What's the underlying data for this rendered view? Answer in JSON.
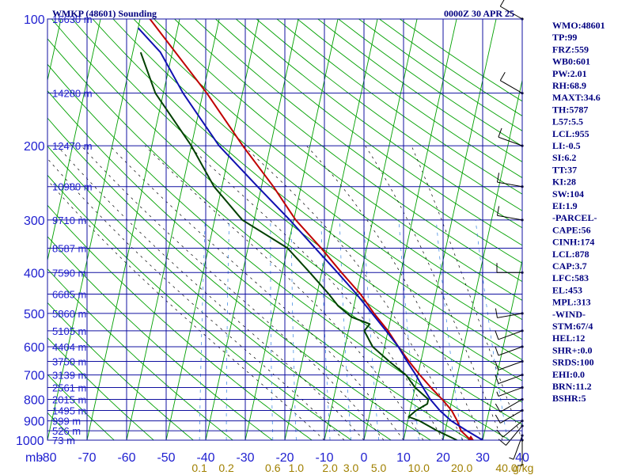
{
  "header": {
    "title": "WMKP (48601) Sounding",
    "time": "0000Z 30 APR 25"
  },
  "colors": {
    "grid": "#1010a0",
    "dry_adiabat": "#00a000",
    "moist_adiabat": "#000000",
    "mixing_ratio": "#3080e0",
    "temperature": "#c00000",
    "dewpoint": "#004000",
    "parcel": "#1010b0",
    "axis_text": "#1f1fd0",
    "mix_text": "#a08000",
    "wind": "#000000"
  },
  "axes": {
    "x_unit_label": "mb",
    "mix_unit_label": "g/kg",
    "temp_ticks": [
      -80,
      -70,
      -60,
      -50,
      -40,
      -30,
      -20,
      -10,
      0,
      10,
      20,
      30,
      40
    ],
    "temp_tick_labels": [
      "-80",
      "-70",
      "-60",
      "-50",
      "-40",
      "-30",
      "-20",
      "-10",
      "0",
      "10",
      "20",
      "30",
      "40"
    ],
    "pressure_levels": [
      100,
      200,
      300,
      400,
      500,
      600,
      700,
      800,
      900,
      1000
    ],
    "pressure_labels": [
      "100",
      "200",
      "300",
      "400",
      "500",
      "600",
      "700",
      "800",
      "900",
      "1000"
    ],
    "temp_range": [
      -80,
      40
    ],
    "pressure_range": [
      100,
      1000
    ],
    "skew": "temperature lines slope up-right",
    "grid": true,
    "mixing_ratio_labels": [
      "0.1",
      "0.2",
      "0.6",
      "1.0",
      "2.0",
      "3.0",
      "5.0",
      "10.0",
      "20.0",
      "40.0"
    ],
    "mixing_ratio_values": [
      0.1,
      0.2,
      0.6,
      1.0,
      2.0,
      3.0,
      5.0,
      10.0,
      20.0,
      40.0
    ]
  },
  "heights": [
    {
      "p": 100,
      "label": "16630 m"
    },
    {
      "p": 150,
      "label": "14280 m"
    },
    {
      "p": 200,
      "label": "12470 m"
    },
    {
      "p": 250,
      "label": "10980 m"
    },
    {
      "p": 300,
      "label": "9710 m"
    },
    {
      "p": 350,
      "label": "8587 m"
    },
    {
      "p": 400,
      "label": "7590 m"
    },
    {
      "p": 450,
      "label": "6685 m"
    },
    {
      "p": 500,
      "label": "5860 m"
    },
    {
      "p": 550,
      "label": "5105 m"
    },
    {
      "p": 600,
      "label": "4404 m"
    },
    {
      "p": 650,
      "label": "3750 m"
    },
    {
      "p": 700,
      "label": "3139 m"
    },
    {
      "p": 750,
      "label": "2561 m"
    },
    {
      "p": 800,
      "label": "2015 m"
    },
    {
      "p": 850,
      "label": "1495 m"
    },
    {
      "p": 900,
      "label": "999 m"
    },
    {
      "p": 950,
      "label": "526 m"
    },
    {
      "p": 1000,
      "label": "73 m"
    }
  ],
  "indices": [
    "WMO:48601",
    "TP:99",
    "FRZ:559",
    "WB0:601",
    "PW:2.01",
    "RH:68.9",
    "MAXT:34.6",
    "TH:5787",
    "L57:5.5",
    "LCL:955",
    "LI:-0.5",
    "SI:6.2",
    "TT:37",
    "KI:28",
    "SW:104",
    "EI:1.9",
    "-PARCEL-",
    "CAPE:56",
    "CINH:174",
    "LCL:878",
    "CAP:3.7",
    "LFC:583",
    "EL:453",
    "MPL:313",
    "-WIND-",
    "STM:67/4",
    "HEL:12",
    "SHR+:0.0",
    "SRDS:100",
    "EHI:0.0",
    "BRN:11.2",
    "BSHR:5"
  ],
  "chart_data": {
    "type": "line",
    "title": "WMKP (48601) Sounding",
    "subtitle": "0000Z 30 APR 25",
    "xlabel": "",
    "ylabel": "mb",
    "xlim": [
      -80,
      40
    ],
    "ylim": [
      1000,
      100
    ],
    "series": [
      {
        "key": "temperature",
        "points": [
          [
            1000,
            27.0
          ],
          [
            950,
            24.0
          ],
          [
            900,
            22.5
          ],
          [
            850,
            20.5
          ],
          [
            800,
            17.5
          ],
          [
            750,
            14.0
          ],
          [
            700,
            10.5
          ],
          [
            650,
            7.0
          ],
          [
            600,
            3.5
          ],
          [
            550,
            0.0
          ],
          [
            500,
            -4.5
          ],
          [
            450,
            -9.0
          ],
          [
            400,
            -15.0
          ],
          [
            350,
            -21.5
          ],
          [
            300,
            -29.5
          ],
          [
            250,
            -37.0
          ],
          [
            200,
            -47.0
          ],
          [
            150,
            -59.0
          ],
          [
            100,
            -77.5
          ]
        ]
      },
      {
        "key": "dewpoint",
        "points": [
          [
            1000,
            23.5
          ],
          [
            950,
            18.0
          ],
          [
            900,
            13.0
          ],
          [
            880,
            10.0
          ],
          [
            850,
            11.5
          ],
          [
            820,
            14.0
          ],
          [
            800,
            14.0
          ],
          [
            750,
            10.0
          ],
          [
            700,
            7.0
          ],
          [
            650,
            2.0
          ],
          [
            600,
            -3.0
          ],
          [
            550,
            -6.0
          ],
          [
            530,
            -5.0
          ],
          [
            510,
            -10.0
          ],
          [
            480,
            -14.0
          ],
          [
            450,
            -17.0
          ],
          [
            400,
            -23.0
          ],
          [
            350,
            -30.0
          ],
          [
            300,
            -43.0
          ],
          [
            250,
            -52.0
          ],
          [
            200,
            -60.0
          ],
          [
            150,
            -72.0
          ],
          [
            120,
            -78.0
          ]
        ]
      },
      {
        "key": "parcel",
        "points": [
          [
            1000,
            30.0
          ],
          [
            950,
            25.5
          ],
          [
            900,
            21.0
          ],
          [
            850,
            17.5
          ],
          [
            800,
            14.5
          ],
          [
            750,
            12.0
          ],
          [
            700,
            9.5
          ],
          [
            650,
            6.5
          ],
          [
            600,
            3.5
          ],
          [
            550,
            -0.5
          ],
          [
            500,
            -5.0
          ],
          [
            450,
            -10.0
          ],
          [
            400,
            -16.0
          ],
          [
            350,
            -23.0
          ],
          [
            300,
            -31.0
          ],
          [
            250,
            -41.0
          ],
          [
            200,
            -53.0
          ],
          [
            150,
            -65.0
          ],
          [
            120,
            -73.0
          ],
          [
            105,
            -80.0
          ]
        ]
      }
    ],
    "winds": [
      {
        "p": 1000,
        "dir": 180,
        "kt": 5
      },
      {
        "p": 975,
        "dir": 200,
        "kt": 5
      },
      {
        "p": 925,
        "dir": 220,
        "kt": 10
      },
      {
        "p": 900,
        "dir": 230,
        "kt": 10
      },
      {
        "p": 850,
        "dir": 240,
        "kt": 10
      },
      {
        "p": 800,
        "dir": 240,
        "kt": 10
      },
      {
        "p": 750,
        "dir": 250,
        "kt": 5
      },
      {
        "p": 700,
        "dir": 250,
        "kt": 10
      },
      {
        "p": 650,
        "dir": 250,
        "kt": 10
      },
      {
        "p": 600,
        "dir": 250,
        "kt": 10
      },
      {
        "p": 550,
        "dir": 250,
        "kt": 10
      },
      {
        "p": 500,
        "dir": 260,
        "kt": 10
      },
      {
        "p": 400,
        "dir": 270,
        "kt": 10
      },
      {
        "p": 300,
        "dir": 280,
        "kt": 10
      },
      {
        "p": 250,
        "dir": 280,
        "kt": 10
      },
      {
        "p": 200,
        "dir": 290,
        "kt": 10
      },
      {
        "p": 150,
        "dir": 300,
        "kt": 10
      },
      {
        "p": 100,
        "dir": 300,
        "kt": 10
      }
    ]
  }
}
